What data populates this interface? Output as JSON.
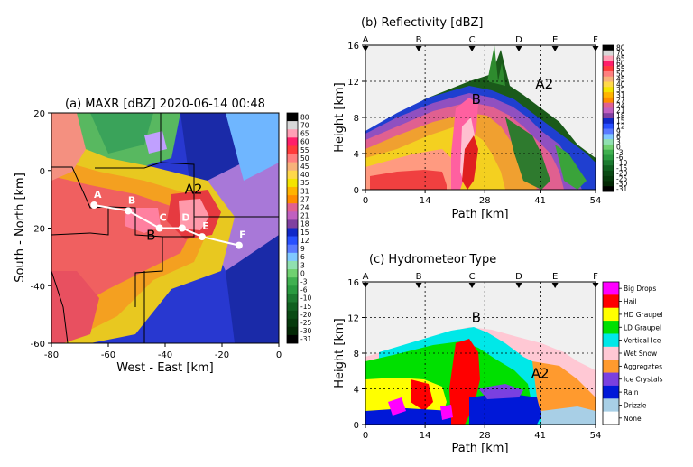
{
  "chart_data": [
    {
      "panel": "a",
      "type": "heatmap",
      "title": "(a) MAXR [dBZ] 2020-06-14 00:48",
      "xlabel": "West - East [km]",
      "ylabel": "South - North [km]",
      "xlim": [
        -80,
        0
      ],
      "ylim": [
        -60,
        20
      ],
      "xticks": [
        "-80",
        "-60",
        "-40",
        "-20",
        "0"
      ],
      "yticks": [
        "20",
        "0",
        "-20",
        "-40",
        "-60"
      ],
      "colorbar_labels": [
        "80",
        "70",
        "65",
        "60",
        "55",
        "50",
        "45",
        "40",
        "35",
        "31",
        "27",
        "24",
        "21",
        "18",
        "15",
        "12",
        "9",
        "6",
        "3",
        "0",
        "-3",
        "-6",
        "-10",
        "-15",
        "-20",
        "-25",
        "-30",
        "-31"
      ],
      "transect_points": [
        {
          "label": "A",
          "x": -65,
          "y": -12
        },
        {
          "label": "B",
          "x": -53,
          "y": -14
        },
        {
          "label": "C",
          "x": -42,
          "y": -20
        },
        {
          "label": "D",
          "x": -34,
          "y": -20
        },
        {
          "label": "E",
          "x": -27,
          "y": -23
        },
        {
          "label": "F",
          "x": -14,
          "y": -26
        }
      ],
      "annotations": [
        {
          "text": "A2",
          "x": -30,
          "y": -8
        },
        {
          "text": "B",
          "x": -45,
          "y": -24
        }
      ]
    },
    {
      "panel": "b",
      "type": "heatmap",
      "title": "(b) Reflectivity [dBZ]",
      "xlabel": "Path [km]",
      "ylabel": "Height [km]",
      "xlim": [
        0,
        54
      ],
      "ylim": [
        0,
        16
      ],
      "xticks": [
        "0",
        "14",
        "28",
        "41",
        "54"
      ],
      "yticks": [
        "0",
        "4",
        "8",
        "12",
        "16"
      ],
      "section_markers": [
        {
          "label": "A",
          "x": 0
        },
        {
          "label": "B",
          "x": 12.5
        },
        {
          "label": "C",
          "x": 25
        },
        {
          "label": "D",
          "x": 36
        },
        {
          "label": "E",
          "x": 44.5
        },
        {
          "label": "F",
          "x": 54
        }
      ],
      "colorbar_labels": [
        "80",
        "70",
        "65",
        "60",
        "55",
        "50",
        "45",
        "40",
        "35",
        "31",
        "27",
        "24",
        "21",
        "18",
        "15",
        "12",
        "9",
        "6",
        "3",
        "0",
        "-3",
        "-6",
        "-10",
        "-15",
        "-20",
        "-25",
        "-30",
        "-31"
      ],
      "annotations": [
        {
          "text": "B",
          "x": 26,
          "y": 9.5
        },
        {
          "text": "A2",
          "x": 42,
          "y": 11.2
        }
      ]
    },
    {
      "panel": "c",
      "type": "heatmap",
      "title": "(c) Hydrometeor Type",
      "xlabel": "Path [km]",
      "ylabel": "Height [km]",
      "xlim": [
        0,
        54
      ],
      "ylim": [
        0,
        16
      ],
      "xticks": [
        "0",
        "14",
        "28",
        "41",
        "54"
      ],
      "yticks": [
        "0",
        "4",
        "8",
        "12",
        "16"
      ],
      "section_markers": [
        {
          "label": "A",
          "x": 0
        },
        {
          "label": "B",
          "x": 12.5
        },
        {
          "label": "C",
          "x": 25
        },
        {
          "label": "D",
          "x": 36
        },
        {
          "label": "E",
          "x": 44.5
        },
        {
          "label": "F",
          "x": 54
        }
      ],
      "categories": [
        "Big Drops",
        "Hail",
        "HD Graupel",
        "LD Graupel",
        "Vertical Ice",
        "Wet Snow",
        "Aggregates",
        "Ice Crystals",
        "Rain",
        "Drizzle",
        "None"
      ],
      "category_colors": [
        "#ff00ff",
        "#ff0000",
        "#ffff00",
        "#00e000",
        "#00e8e8",
        "#ffc8d4",
        "#ff9a2e",
        "#7a40e0",
        "#0018d8",
        "#a8cfe6",
        "#ffffff"
      ],
      "annotations": [
        {
          "text": "B",
          "x": 26,
          "y": 11.5
        },
        {
          "text": "A2",
          "x": 41,
          "y": 5.2
        }
      ]
    }
  ]
}
